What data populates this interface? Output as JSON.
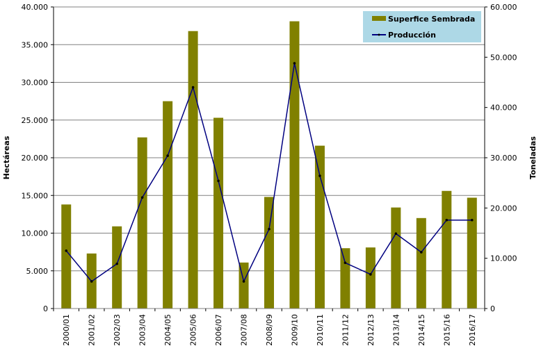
{
  "chart_data": {
    "type": "bar+line",
    "categories": [
      "2000/01",
      "2001/02",
      "2002/03",
      "2003/04",
      "2004/05",
      "2005/06",
      "2006/07",
      "2007/08",
      "2008/09",
      "2009/10",
      "2010/11",
      "2011/12",
      "2012/13",
      "2013/14",
      "2014/15",
      "2015/16",
      "2016/17"
    ],
    "series": [
      {
        "name": "Superfice Sembrada",
        "type": "bar",
        "axis": "left",
        "color": "#808000",
        "values": [
          13800,
          7300,
          10900,
          22700,
          27500,
          36800,
          25300,
          6100,
          14800,
          38100,
          21600,
          8000,
          8100,
          13400,
          12000,
          15600,
          14700
        ]
      },
      {
        "name": "Producción",
        "type": "line",
        "axis": "right",
        "color": "#000080",
        "values": [
          11500,
          5400,
          8900,
          22100,
          30400,
          44000,
          25400,
          5400,
          15800,
          48800,
          26400,
          9100,
          6800,
          14900,
          11200,
          17600,
          17600
        ]
      }
    ],
    "ylabel": "Hectáreas",
    "y2label": "Toneladas",
    "ylim": [
      0,
      40000
    ],
    "y2lim": [
      0,
      60000
    ],
    "yticks": [
      "0",
      "5.000",
      "10.000",
      "15.000",
      "20.000",
      "25.000",
      "30.000",
      "35.000",
      "40.000"
    ],
    "y2ticks": [
      "0",
      "10.000",
      "20.000",
      "30.000",
      "40.000",
      "50.000",
      "60.000"
    ],
    "grid": true,
    "legend": {
      "placement": "top-right",
      "background": "#add8e6"
    }
  }
}
